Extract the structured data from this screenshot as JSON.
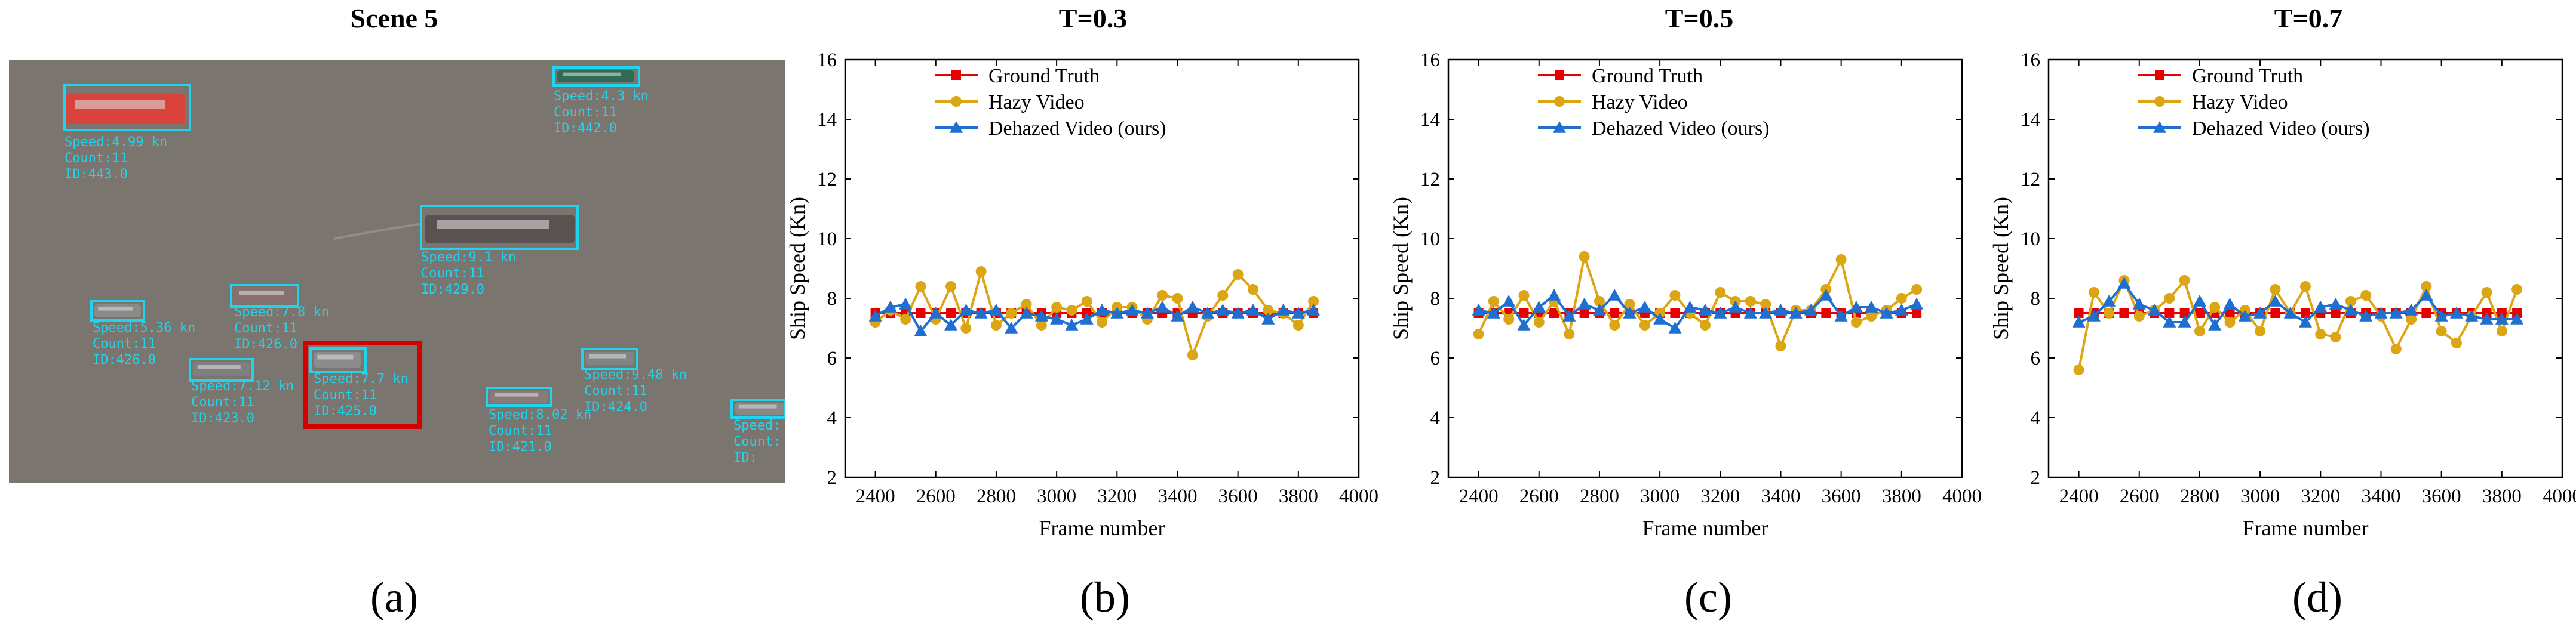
{
  "panels": [
    {
      "title": "Scene 5",
      "label": "(a)"
    },
    {
      "title": "T=0.3",
      "label": "(b)"
    },
    {
      "title": "T=0.5",
      "label": "(c)"
    },
    {
      "title": "T=0.7",
      "label": "(d)"
    }
  ],
  "colors": {
    "ground_truth": "#e60000",
    "hazy": "#dba514",
    "dehazed": "#1f6fd1",
    "detection_box": "#22d3ee",
    "highlight_box": "#d40000",
    "water": "#7b7570"
  },
  "scene": {
    "ships": [
      {
        "lines": [
          "Speed:4.99 kn",
          "Count:11",
          "ID:443.0"
        ],
        "hull": "#d9433b"
      },
      {
        "lines": [
          "Speed:4.3 kn",
          "Count:11",
          "ID:442.0"
        ],
        "hull": "#2f6b57"
      },
      {
        "lines": [
          "Speed:9.1 kn",
          "Count:11",
          "ID:429.0"
        ],
        "hull": "#5a5151"
      },
      {
        "lines": [
          "Speed:7.8 kn",
          "Count:11",
          "ID:426.0"
        ],
        "hull": "#8a7070"
      },
      {
        "lines": [
          "Speed:5.36 kn",
          "Count:11",
          "ID:426.0"
        ],
        "hull": "#8a8a8a"
      },
      {
        "lines": [
          "Speed:7.12 kn",
          "Count:11",
          "ID:423.0"
        ],
        "hull": "#7f7f7f"
      },
      {
        "lines": [
          "Speed:7.7 kn",
          "Count:11",
          "ID:425.0"
        ],
        "hull": "#8c8c8c"
      },
      {
        "lines": [
          "Speed:8.02 kn",
          "Count:11",
          "ID:421.0"
        ],
        "hull": "#8a7a7a"
      },
      {
        "lines": [
          "Speed:9.48 kn",
          "Count:11",
          "ID:424.0"
        ],
        "hull": "#7f8585"
      },
      {
        "lines": [
          "Speed:",
          "Count:",
          "ID:"
        ],
        "hull": "#888888"
      }
    ]
  },
  "chart_data": [
    {
      "type": "line",
      "title": "T=0.3",
      "xlabel": "Frame number",
      "ylabel": "Ship Speed (Kn)",
      "xlim": [
        2300,
        4000
      ],
      "ylim": [
        2,
        16
      ],
      "xticks": [
        "2400",
        "2600",
        "2800",
        "3000",
        "3200",
        "3400",
        "3600",
        "3800",
        "4000"
      ],
      "yticks": [
        "2",
        "4",
        "6",
        "8",
        "10",
        "12",
        "14",
        "16"
      ],
      "grid": false,
      "legend": "top-left",
      "x": [
        2400,
        2450,
        2500,
        2550,
        2600,
        2650,
        2700,
        2750,
        2800,
        2850,
        2900,
        2950,
        3000,
        3050,
        3100,
        3150,
        3200,
        3250,
        3300,
        3350,
        3400,
        3450,
        3500,
        3550,
        3600,
        3650,
        3700,
        3750,
        3800,
        3850
      ],
      "series": [
        {
          "name": "Ground Truth",
          "values": [
            7.5,
            7.5,
            7.5,
            7.5,
            7.5,
            7.5,
            7.5,
            7.5,
            7.5,
            7.5,
            7.5,
            7.5,
            7.5,
            7.5,
            7.5,
            7.5,
            7.5,
            7.5,
            7.5,
            7.5,
            7.5,
            7.5,
            7.5,
            7.5,
            7.5,
            7.5,
            7.5,
            7.5,
            7.5,
            7.5
          ]
        },
        {
          "name": "Hazy Video",
          "values": [
            7.2,
            7.6,
            7.3,
            8.4,
            7.3,
            8.4,
            7.0,
            8.9,
            7.1,
            7.5,
            7.8,
            7.1,
            7.7,
            7.6,
            7.9,
            7.2,
            7.7,
            7.7,
            7.3,
            8.1,
            8.0,
            6.1,
            7.4,
            8.1,
            8.8,
            8.3,
            7.6,
            7.5,
            7.1,
            7.9
          ]
        },
        {
          "name": "Dehazed Video (ours)",
          "values": [
            7.4,
            7.7,
            7.8,
            6.9,
            7.5,
            7.1,
            7.6,
            7.5,
            7.6,
            7.0,
            7.5,
            7.4,
            7.3,
            7.1,
            7.3,
            7.6,
            7.5,
            7.6,
            7.5,
            7.7,
            7.4,
            7.7,
            7.5,
            7.6,
            7.5,
            7.6,
            7.3,
            7.6,
            7.5,
            7.6
          ]
        }
      ]
    },
    {
      "type": "line",
      "title": "T=0.5",
      "xlabel": "Frame number",
      "ylabel": "Ship Speed (Kn)",
      "xlim": [
        2300,
        4000
      ],
      "ylim": [
        2,
        16
      ],
      "xticks": [
        "2400",
        "2600",
        "2800",
        "3000",
        "3200",
        "3400",
        "3600",
        "3800",
        "4000"
      ],
      "yticks": [
        "2",
        "4",
        "6",
        "8",
        "10",
        "12",
        "14",
        "16"
      ],
      "grid": false,
      "legend": "top-left",
      "x": [
        2400,
        2450,
        2500,
        2550,
        2600,
        2650,
        2700,
        2750,
        2800,
        2850,
        2900,
        2950,
        3000,
        3050,
        3100,
        3150,
        3200,
        3250,
        3300,
        3350,
        3400,
        3450,
        3500,
        3550,
        3600,
        3650,
        3700,
        3750,
        3800,
        3850
      ],
      "series": [
        {
          "name": "Ground Truth",
          "values": [
            7.5,
            7.5,
            7.5,
            7.5,
            7.5,
            7.5,
            7.5,
            7.5,
            7.5,
            7.5,
            7.5,
            7.5,
            7.5,
            7.5,
            7.5,
            7.5,
            7.5,
            7.5,
            7.5,
            7.5,
            7.5,
            7.5,
            7.5,
            7.5,
            7.5,
            7.5,
            7.5,
            7.5,
            7.5,
            7.5
          ]
        },
        {
          "name": "Hazy Video",
          "values": [
            6.8,
            7.9,
            7.3,
            8.1,
            7.2,
            7.9,
            6.8,
            9.4,
            7.9,
            7.1,
            7.8,
            7.1,
            7.5,
            8.1,
            7.5,
            7.1,
            8.2,
            7.9,
            7.9,
            7.8,
            6.4,
            7.6,
            7.6,
            8.3,
            9.3,
            7.2,
            7.4,
            7.6,
            8.0,
            8.3
          ]
        },
        {
          "name": "Dehazed Video (ours)",
          "values": [
            7.6,
            7.5,
            7.9,
            7.1,
            7.7,
            8.1,
            7.4,
            7.8,
            7.6,
            8.1,
            7.5,
            7.7,
            7.3,
            7.0,
            7.7,
            7.6,
            7.5,
            7.7,
            7.5,
            7.5,
            7.6,
            7.5,
            7.6,
            8.1,
            7.4,
            7.7,
            7.7,
            7.5,
            7.6,
            7.8
          ]
        }
      ]
    },
    {
      "type": "line",
      "title": "T=0.7",
      "xlabel": "Frame number",
      "ylabel": "Ship Speed (Kn)",
      "xlim": [
        2300,
        4000
      ],
      "ylim": [
        2,
        16
      ],
      "xticks": [
        "2400",
        "2600",
        "2800",
        "3000",
        "3200",
        "3400",
        "3600",
        "3800",
        "4000"
      ],
      "yticks": [
        "2",
        "4",
        "6",
        "8",
        "10",
        "12",
        "14",
        "16"
      ],
      "grid": false,
      "legend": "top-left",
      "x": [
        2400,
        2450,
        2500,
        2550,
        2600,
        2650,
        2700,
        2750,
        2800,
        2850,
        2900,
        2950,
        3000,
        3050,
        3100,
        3150,
        3200,
        3250,
        3300,
        3350,
        3400,
        3450,
        3500,
        3550,
        3600,
        3650,
        3700,
        3750,
        3800,
        3850
      ],
      "series": [
        {
          "name": "Ground Truth",
          "values": [
            7.5,
            7.5,
            7.5,
            7.5,
            7.5,
            7.5,
            7.5,
            7.5,
            7.5,
            7.5,
            7.5,
            7.5,
            7.5,
            7.5,
            7.5,
            7.5,
            7.5,
            7.5,
            7.5,
            7.5,
            7.5,
            7.5,
            7.5,
            7.5,
            7.5,
            7.5,
            7.5,
            7.5,
            7.5,
            7.5
          ]
        },
        {
          "name": "Hazy Video",
          "values": [
            5.6,
            8.2,
            7.5,
            8.6,
            7.4,
            7.6,
            8.0,
            8.6,
            6.9,
            7.7,
            7.2,
            7.6,
            6.9,
            8.3,
            7.5,
            8.4,
            6.8,
            6.7,
            7.9,
            8.1,
            7.4,
            6.3,
            7.3,
            8.4,
            6.9,
            6.5,
            7.4,
            8.2,
            6.9,
            8.3
          ]
        },
        {
          "name": "Dehazed Video (ours)",
          "values": [
            7.2,
            7.4,
            7.9,
            8.5,
            7.8,
            7.6,
            7.2,
            7.2,
            7.9,
            7.1,
            7.8,
            7.4,
            7.5,
            7.9,
            7.5,
            7.2,
            7.7,
            7.8,
            7.6,
            7.4,
            7.5,
            7.5,
            7.6,
            8.1,
            7.4,
            7.5,
            7.4,
            7.3,
            7.3,
            7.3
          ]
        }
      ]
    }
  ]
}
